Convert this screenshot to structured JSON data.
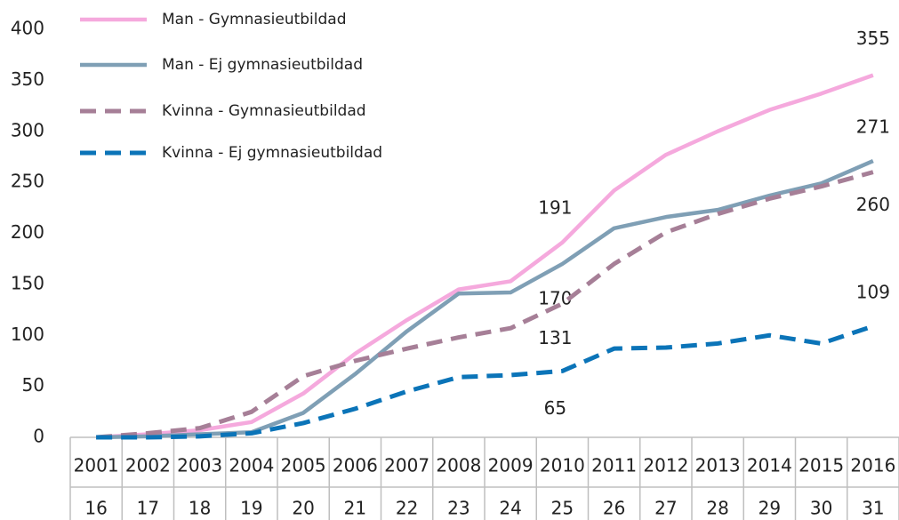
{
  "chart_data": {
    "type": "line",
    "categories": [
      "2001",
      "2002",
      "2003",
      "2004",
      "2005",
      "2006",
      "2007",
      "2008",
      "2009",
      "2010",
      "2011",
      "2012",
      "2013",
      "2014",
      "2015",
      "2016"
    ],
    "categories2": [
      "16",
      "17",
      "18",
      "19",
      "20",
      "21",
      "22",
      "23",
      "24",
      "25",
      "26",
      "27",
      "28",
      "29",
      "30",
      "31"
    ],
    "series": [
      {
        "name": "Man - Gymnasieutbildad",
        "color": "#f5a9dd",
        "dashed": false,
        "values": [
          0,
          3,
          7,
          15,
          43,
          82,
          115,
          145,
          153,
          191,
          242,
          277,
          300,
          321,
          337,
          355
        ],
        "value_labels": [
          null,
          null,
          null,
          null,
          null,
          null,
          null,
          null,
          null,
          "191",
          null,
          null,
          null,
          null,
          null,
          "355"
        ]
      },
      {
        "name": "Man - Ej gymnasieutbildad",
        "color": "#7f9fb5",
        "dashed": false,
        "values": [
          0,
          1,
          3,
          5,
          24,
          62,
          104,
          141,
          142,
          170,
          205,
          216,
          223,
          237,
          249,
          271
        ],
        "value_labels": [
          null,
          null,
          null,
          null,
          null,
          null,
          null,
          null,
          null,
          "170",
          null,
          null,
          null,
          null,
          null,
          "271"
        ]
      },
      {
        "name": "Kvinna - Gymnasieutbildad",
        "color": "#a67f97",
        "dashed": true,
        "values": [
          0,
          4,
          9,
          25,
          60,
          75,
          87,
          98,
          107,
          131,
          170,
          201,
          219,
          234,
          246,
          260
        ],
        "value_labels": [
          null,
          null,
          null,
          null,
          null,
          null,
          null,
          null,
          null,
          "131",
          null,
          null,
          null,
          null,
          null,
          "260"
        ]
      },
      {
        "name": "Kvinna - Ej gymnasieutbildad",
        "color": "#0b74b8",
        "dashed": true,
        "values": [
          0,
          0,
          1,
          4,
          14,
          28,
          45,
          59,
          61,
          65,
          87,
          88,
          92,
          100,
          92,
          109
        ],
        "value_labels": [
          null,
          null,
          null,
          null,
          null,
          null,
          null,
          null,
          null,
          "65",
          null,
          null,
          null,
          null,
          null,
          "109"
        ]
      }
    ],
    "ylim": [
      0,
      400
    ],
    "yticks": [
      0,
      50,
      100,
      150,
      200,
      250,
      300,
      350,
      400
    ],
    "grid": false,
    "legend": "top-left"
  }
}
